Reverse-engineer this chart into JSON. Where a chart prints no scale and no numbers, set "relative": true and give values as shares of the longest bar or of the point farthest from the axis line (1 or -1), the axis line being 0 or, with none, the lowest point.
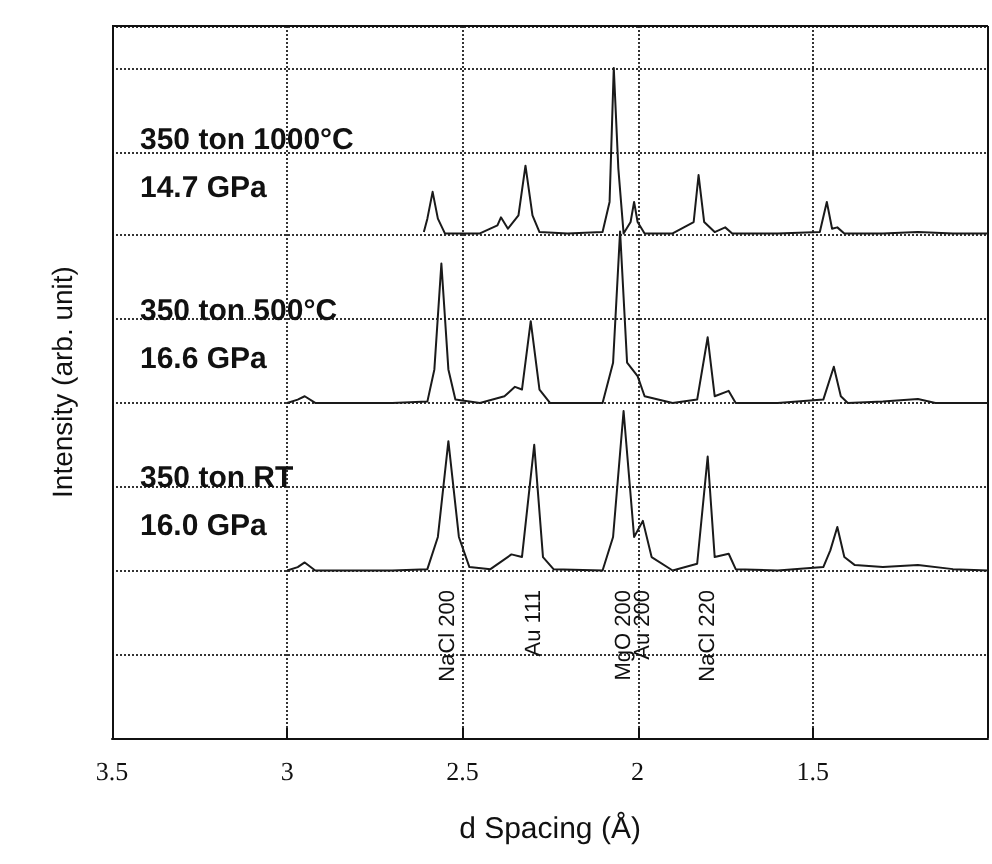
{
  "chart_data": {
    "type": "line",
    "relative": true,
    "xlabel": "d Spacing (Å)",
    "ylabel": "Intensity (arb. unit)",
    "xlim": [
      3.5,
      1.0
    ],
    "xticks": [
      3.5,
      3,
      2.5,
      2,
      1.5
    ],
    "grid": true,
    "marker": "none",
    "line_style": "solid",
    "series": [
      {
        "name": "350 ton 1000°C\n14.7 GPa",
        "color": "#1a1a1a",
        "x": [
          2.61,
          2.6,
          2.585,
          2.57,
          2.55,
          2.45,
          2.4,
          2.39,
          2.37,
          2.34,
          2.32,
          2.3,
          2.28,
          2.2,
          2.1,
          2.08,
          2.068,
          2.055,
          2.04,
          2.02,
          2.01,
          2.0,
          1.98,
          1.9,
          1.84,
          1.826,
          1.81,
          1.78,
          1.75,
          1.73,
          1.6,
          1.48,
          1.46,
          1.445,
          1.43,
          1.41,
          1.3,
          1.2,
          1.1,
          1.0
        ],
        "values": [
          0.755,
          0.775,
          0.815,
          0.775,
          0.753,
          0.753,
          0.765,
          0.777,
          0.76,
          0.78,
          0.854,
          0.78,
          0.755,
          0.753,
          0.755,
          0.8,
          1.0,
          0.85,
          0.753,
          0.77,
          0.8,
          0.77,
          0.753,
          0.753,
          0.77,
          0.84,
          0.77,
          0.755,
          0.762,
          0.753,
          0.753,
          0.755,
          0.8,
          0.76,
          0.762,
          0.753,
          0.753,
          0.755,
          0.753,
          0.753
        ]
      },
      {
        "name": "350 ton 500°C\n16.6 GPa",
        "color": "#1a1a1a",
        "x": [
          3.0,
          2.97,
          2.95,
          2.92,
          2.7,
          2.6,
          2.58,
          2.56,
          2.54,
          2.52,
          2.45,
          2.38,
          2.35,
          2.33,
          2.305,
          2.28,
          2.25,
          2.1,
          2.07,
          2.05,
          2.03,
          2.0,
          1.98,
          1.9,
          1.83,
          1.8,
          1.78,
          1.74,
          1.72,
          1.6,
          1.47,
          1.44,
          1.42,
          1.4,
          1.3,
          1.2,
          1.15,
          1.0
        ],
        "values": [
          0.5,
          0.505,
          0.51,
          0.5,
          0.5,
          0.502,
          0.55,
          0.708,
          0.55,
          0.505,
          0.5,
          0.51,
          0.524,
          0.52,
          0.622,
          0.52,
          0.5,
          0.5,
          0.56,
          0.756,
          0.56,
          0.54,
          0.51,
          0.5,
          0.505,
          0.598,
          0.51,
          0.518,
          0.5,
          0.5,
          0.505,
          0.554,
          0.51,
          0.5,
          0.502,
          0.506,
          0.5,
          0.5
        ]
      },
      {
        "name": "350 ton RT\n16.0 GPa",
        "color": "#1a1a1a",
        "x": [
          3.0,
          2.97,
          2.95,
          2.92,
          2.7,
          2.6,
          2.57,
          2.54,
          2.51,
          2.48,
          2.42,
          2.36,
          2.33,
          2.295,
          2.27,
          2.24,
          2.1,
          2.07,
          2.04,
          2.01,
          1.985,
          1.96,
          1.9,
          1.83,
          1.8,
          1.78,
          1.74,
          1.72,
          1.6,
          1.47,
          1.45,
          1.43,
          1.41,
          1.38,
          1.3,
          1.2,
          1.1,
          1.0
        ],
        "values": [
          0.25,
          0.255,
          0.262,
          0.25,
          0.25,
          0.252,
          0.3,
          0.443,
          0.3,
          0.255,
          0.252,
          0.274,
          0.27,
          0.4375,
          0.27,
          0.252,
          0.25,
          0.3,
          0.488,
          0.3,
          0.324,
          0.27,
          0.25,
          0.26,
          0.42,
          0.27,
          0.275,
          0.252,
          0.25,
          0.255,
          0.28,
          0.315,
          0.27,
          0.258,
          0.255,
          0.258,
          0.252,
          0.25
        ]
      }
    ],
    "annotations": [
      "NaCl 200",
      "Au 111",
      "MgO 200",
      "Au 200",
      "NaCl 220"
    ]
  }
}
